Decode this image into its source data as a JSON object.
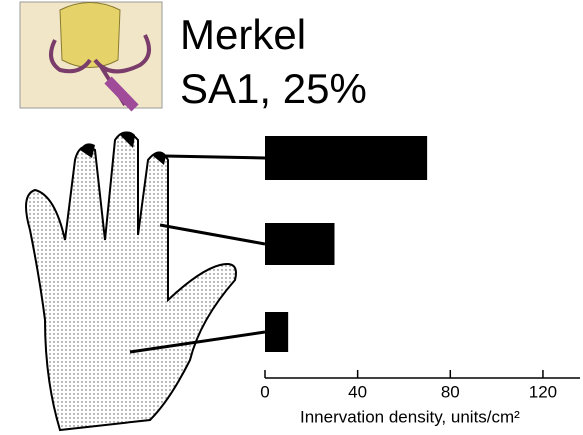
{
  "chart_data": {
    "type": "bar",
    "orientation": "horizontal",
    "title": "Merkel",
    "subtitle": "SA1, 25%",
    "categories": [
      null,
      null,
      null
    ],
    "values": [
      70,
      30,
      10
    ],
    "color": "#000000",
    "xlim": [
      0,
      136
    ],
    "xticks": [
      0,
      40,
      80,
      120
    ],
    "xlabel": "Innervation density, units/cm²"
  }
}
